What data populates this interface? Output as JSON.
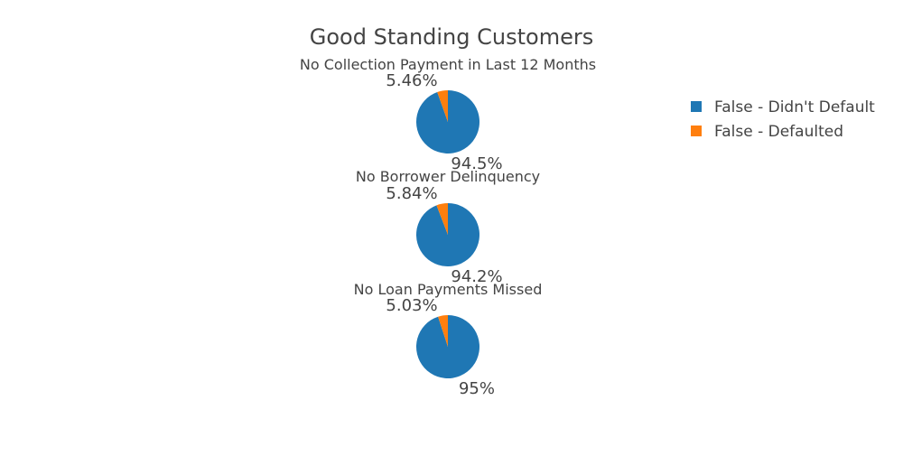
{
  "chart_data": {
    "type": "pie",
    "title": "Good Standing Customers",
    "legend": {
      "placement": "top-right",
      "entries": [
        {
          "label": "False - Didn't Default",
          "color": "#1f77b4"
        },
        {
          "label": "False - Defaulted",
          "color": "#ff7f0e"
        }
      ]
    },
    "pies": [
      {
        "subtitle": "No Collection Payment in Last 12 Months",
        "slices": [
          {
            "label": "False - Didn't Default",
            "value": 94.54,
            "text": "94.5%",
            "color": "#1f77b4"
          },
          {
            "label": "False - Defaulted",
            "value": 5.46,
            "text": "5.46%",
            "color": "#ff7f0e"
          }
        ]
      },
      {
        "subtitle": "No Borrower Delinquency",
        "slices": [
          {
            "label": "False - Didn't Default",
            "value": 94.16,
            "text": "94.2%",
            "color": "#1f77b4"
          },
          {
            "label": "False - Defaulted",
            "value": 5.84,
            "text": "5.84%",
            "color": "#ff7f0e"
          }
        ]
      },
      {
        "subtitle": "No Loan Payments Missed",
        "slices": [
          {
            "label": "False - Didn't Default",
            "value": 94.97,
            "text": "95%",
            "color": "#1f77b4"
          },
          {
            "label": "False - Defaulted",
            "value": 5.03,
            "text": "5.03%",
            "color": "#ff7f0e"
          }
        ]
      }
    ]
  }
}
